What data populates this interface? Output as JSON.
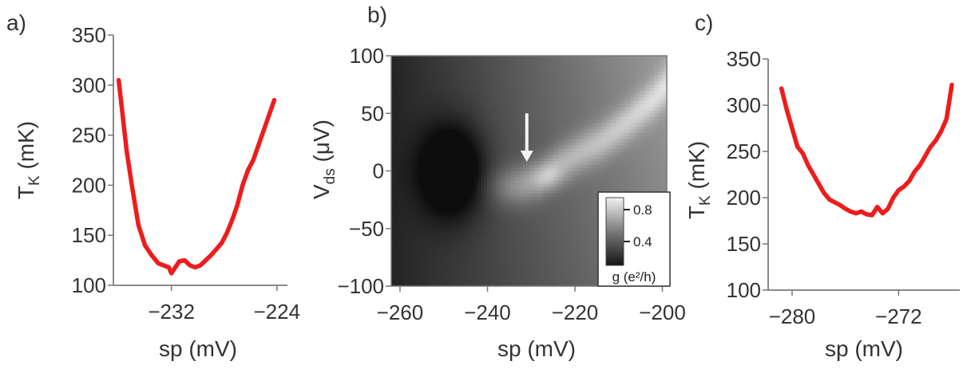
{
  "chart_data": [
    {
      "panel": "a)",
      "type": "line",
      "xlabel": "sp (mV)",
      "ylabel_main": "T",
      "ylabel_sub": "K",
      "ylabel_unit": " (mK)",
      "xlim": [
        -236.4,
        -223.2
      ],
      "ylim": [
        100,
        350
      ],
      "xticks": [
        -232,
        -224
      ],
      "yticks": [
        100,
        150,
        200,
        250,
        300,
        350
      ],
      "line_color": "#ee1c1c",
      "x": [
        -236.0,
        -235.7,
        -235.4,
        -235.0,
        -234.5,
        -234.0,
        -233.5,
        -233.0,
        -232.6,
        -232.2,
        -232.0,
        -231.7,
        -231.4,
        -231.0,
        -230.6,
        -230.2,
        -229.8,
        -229.4,
        -229.0,
        -228.6,
        -228.2,
        -227.8,
        -227.4,
        -227.0,
        -226.6,
        -226.2,
        -225.8,
        -225.4,
        -225.0,
        -224.6,
        -224.2
      ],
      "y": [
        305,
        270,
        235,
        200,
        160,
        140,
        130,
        122,
        120,
        118,
        112,
        118,
        124,
        125,
        120,
        118,
        120,
        125,
        130,
        136,
        142,
        152,
        165,
        180,
        200,
        215,
        225,
        240,
        255,
        270,
        285
      ]
    },
    {
      "panel": "b)",
      "type": "heatmap",
      "xlabel": "sp (mV)",
      "ylabel_main": "V",
      "ylabel_sub": "ds",
      "ylabel_unit": " (μV)",
      "xlim": [
        -262,
        -199
      ],
      "ylim": [
        -100,
        100
      ],
      "xticks": [
        -260,
        -240,
        -220,
        -200
      ],
      "yticks": [
        -100,
        -50,
        0,
        50,
        100
      ],
      "colorbar_ticks": [
        0.8,
        0.4
      ],
      "colorbar_label": "g (e²/h)",
      "colorbar_range": [
        0.1,
        0.95
      ],
      "annotation": "arrow",
      "arrow_x": -231,
      "arrow_y_from": 50,
      "arrow_y_to": 8,
      "features": {
        "dark_blob": {
          "x": -248,
          "y": 0,
          "sx": 5,
          "sy": 27,
          "depth": 0.42
        },
        "ridge_points": [
          [
            -236,
            -14
          ],
          [
            -232,
            -12
          ],
          [
            -228,
            -7
          ],
          [
            -224,
            4
          ],
          [
            -220,
            13
          ],
          [
            -214,
            25
          ],
          [
            -208,
            42
          ],
          [
            -202,
            62
          ],
          [
            -199,
            74
          ]
        ],
        "ridge_width_x": 2.2,
        "ridge_width_y": 12,
        "ridge_peak": {
          "x": -226,
          "y": -5,
          "sx": 2.5,
          "sy": 8,
          "amp": 0.15
        }
      }
    },
    {
      "panel": "c)",
      "type": "line",
      "xlabel": "sp (mV)",
      "ylabel_main": "T",
      "ylabel_sub": "K",
      "ylabel_unit": " (mK)",
      "xlim": [
        -281.8,
        -267.4
      ],
      "ylim": [
        100,
        350
      ],
      "xticks": [
        -280,
        -272
      ],
      "yticks": [
        100,
        150,
        200,
        250,
        300,
        350
      ],
      "line_color": "#ee1c1c",
      "x": [
        -280.8,
        -280.4,
        -280.0,
        -279.6,
        -279.2,
        -278.8,
        -278.4,
        -278.0,
        -277.6,
        -277.2,
        -276.8,
        -276.4,
        -276.0,
        -275.6,
        -275.2,
        -274.8,
        -274.4,
        -274.0,
        -273.6,
        -273.2,
        -272.8,
        -272.4,
        -272.0,
        -271.6,
        -271.2,
        -270.8,
        -270.4,
        -270.0,
        -269.6,
        -269.2,
        -268.8,
        -268.4,
        -268.0
      ],
      "y": [
        318,
        295,
        275,
        255,
        248,
        235,
        225,
        215,
        205,
        198,
        195,
        192,
        188,
        185,
        183,
        185,
        182,
        181,
        190,
        183,
        188,
        200,
        208,
        212,
        218,
        228,
        235,
        245,
        255,
        262,
        272,
        285,
        322
      ]
    }
  ]
}
